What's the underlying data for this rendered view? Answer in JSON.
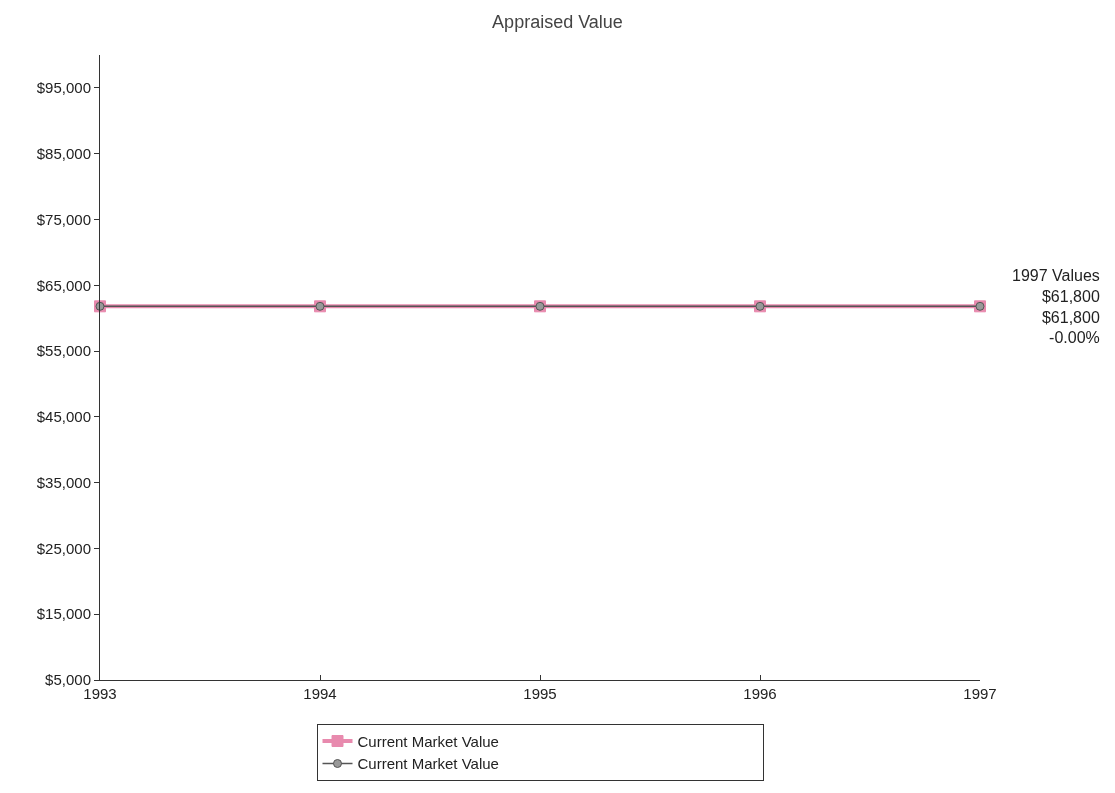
{
  "chart_data": {
    "type": "line",
    "title": "Appraised Value",
    "x": [
      1993,
      1994,
      1995,
      1996,
      1997
    ],
    "xlim": [
      1993,
      1997
    ],
    "xticks": [
      1993,
      1994,
      1995,
      1996,
      1997
    ],
    "ylim": [
      5000,
      100000
    ],
    "yticks": [
      {
        "value": 5000,
        "label": "$5,000"
      },
      {
        "value": 15000,
        "label": "$15,000"
      },
      {
        "value": 25000,
        "label": "$25,000"
      },
      {
        "value": 35000,
        "label": "$35,000"
      },
      {
        "value": 45000,
        "label": "$45,000"
      },
      {
        "value": 55000,
        "label": "$55,000"
      },
      {
        "value": 65000,
        "label": "$65,000"
      },
      {
        "value": 75000,
        "label": "$75,000"
      },
      {
        "value": 85000,
        "label": "$85,000"
      },
      {
        "value": 95000,
        "label": "$95,000"
      }
    ],
    "series": [
      {
        "name": "Current Market Value",
        "color": "#e88aae",
        "marker": "square",
        "values": [
          61800,
          61800,
          61800,
          61800,
          61800
        ]
      },
      {
        "name": "Current Market Value",
        "color": "#555555",
        "marker": "circle",
        "values": [
          61800,
          61800,
          61800,
          61800,
          61800
        ]
      }
    ],
    "annotations": [
      "1997 Values\n$61,800\n$61,800\n-0.00%"
    ],
    "grid": false,
    "legend": "bottom"
  }
}
